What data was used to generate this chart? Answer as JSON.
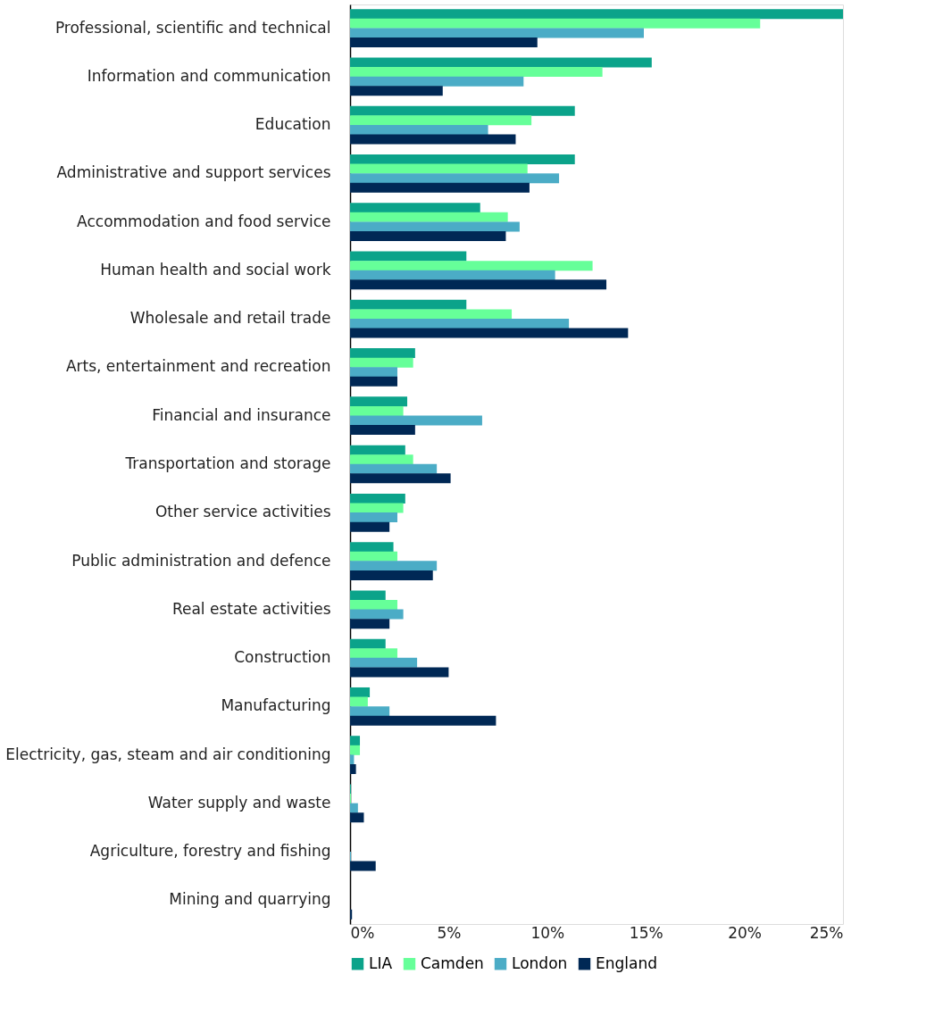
{
  "chart_data": {
    "type": "bar",
    "orientation": "horizontal",
    "categories": [
      "Professional, scientific and technical",
      "Information and communication",
      "Education",
      "Administrative and support services",
      "Accommodation and food service",
      "Human health and social work",
      "Wholesale and retail trade",
      "Arts, entertainment and recreation",
      "Financial and insurance",
      "Transportation and storage",
      "Other service activities",
      "Public administration and defence",
      "Real estate activities",
      "Construction",
      "Manufacturing",
      "Electricity, gas, steam and air conditioning",
      "Water supply and waste",
      "Agriculture, forestry and fishing",
      "Mining and quarrying"
    ],
    "series": [
      {
        "name": "LIA",
        "color": "#0ba38a",
        "values": [
          25.0,
          15.3,
          11.4,
          11.4,
          6.6,
          5.9,
          5.9,
          3.3,
          2.9,
          2.8,
          2.8,
          2.2,
          1.8,
          1.8,
          1.0,
          0.5,
          0.05,
          0,
          0
        ]
      },
      {
        "name": "Camden",
        "color": "#66ff99",
        "values": [
          20.8,
          12.8,
          9.2,
          9.0,
          8.0,
          12.3,
          8.2,
          3.2,
          2.7,
          3.2,
          2.7,
          2.4,
          2.4,
          2.4,
          0.9,
          0.5,
          0.05,
          0,
          0
        ]
      },
      {
        "name": "London",
        "color": "#4bacc6",
        "values": [
          14.9,
          8.8,
          7.0,
          10.6,
          8.6,
          10.4,
          11.1,
          2.4,
          6.7,
          4.4,
          2.4,
          4.4,
          2.7,
          3.4,
          2.0,
          0.2,
          0.4,
          0.05,
          0
        ]
      },
      {
        "name": "England",
        "color": "#002855",
        "values": [
          9.5,
          4.7,
          8.4,
          9.1,
          7.9,
          13.0,
          14.1,
          2.4,
          3.3,
          5.1,
          2.0,
          4.2,
          2.0,
          5.0,
          7.4,
          0.3,
          0.7,
          1.3,
          0.1
        ]
      }
    ],
    "xlim": [
      0,
      25
    ],
    "xticks": [
      {
        "value": 0,
        "label": "0%"
      },
      {
        "value": 5,
        "label": "5%"
      },
      {
        "value": 10,
        "label": "10%"
      },
      {
        "value": 15,
        "label": "15%"
      },
      {
        "value": 20,
        "label": "20%"
      },
      {
        "value": 25,
        "label": "25%"
      }
    ],
    "grid": false,
    "legend": "bottom"
  }
}
